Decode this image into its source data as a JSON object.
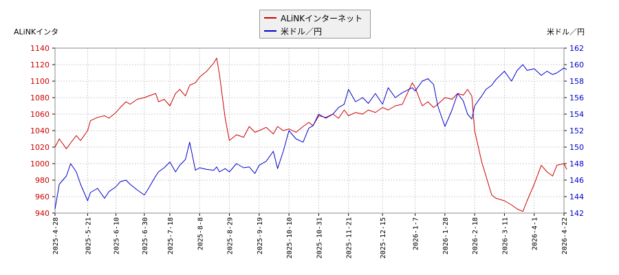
{
  "chart_data": {
    "type": "line",
    "axis_title_left": "ALiNKインタ",
    "axis_title_right": "米ドル／円",
    "legend_position": "top-center",
    "grid": true,
    "x_ticks": [
      "2025-4-28",
      "2025-5-21",
      "2025-6-10",
      "2025-6-30",
      "2025-7-18",
      "2025-8-8",
      "2025-8-29",
      "2025-9-19",
      "2025-10-10",
      "2025-10-31",
      "2025-11-21",
      "2025-12-15",
      "2026-1-7",
      "2026-1-28",
      "2026-2-18",
      "2026-3-11",
      "2026-4-1",
      "2026-4-22"
    ],
    "y_left": {
      "min": 940,
      "max": 1140,
      "ticks": [
        "940",
        "960",
        "980",
        "1000",
        "1020",
        "1040",
        "1060",
        "1080",
        "1100",
        "1120",
        "1140"
      ],
      "color": "#cc0000"
    },
    "y_right": {
      "min": 142,
      "max": 162,
      "ticks": [
        "142",
        "144",
        "146",
        "148",
        "150",
        "152",
        "154",
        "156",
        "158",
        "160",
        "162"
      ],
      "color": "#0000cc"
    },
    "series": [
      {
        "name": "ALiNKインターネット",
        "axis": "left",
        "color": "#cc0000",
        "points": [
          [
            "2025-4-28",
            1020
          ],
          [
            "2025-5-1",
            1030
          ],
          [
            "2025-5-6",
            1018
          ],
          [
            "2025-5-9",
            1025
          ],
          [
            "2025-5-13",
            1034
          ],
          [
            "2025-5-16",
            1028
          ],
          [
            "2025-5-21",
            1040
          ],
          [
            "2025-5-23",
            1052
          ],
          [
            "2025-5-28",
            1056
          ],
          [
            "2025-6-2",
            1058
          ],
          [
            "2025-6-5",
            1055
          ],
          [
            "2025-6-10",
            1062
          ],
          [
            "2025-6-13",
            1068
          ],
          [
            "2025-6-17",
            1075
          ],
          [
            "2025-6-20",
            1072
          ],
          [
            "2025-6-25",
            1078
          ],
          [
            "2025-6-30",
            1080
          ],
          [
            "2025-7-3",
            1082
          ],
          [
            "2025-7-8",
            1085
          ],
          [
            "2025-7-10",
            1075
          ],
          [
            "2025-7-14",
            1078
          ],
          [
            "2025-7-18",
            1070
          ],
          [
            "2025-7-22",
            1085
          ],
          [
            "2025-7-25",
            1090
          ],
          [
            "2025-7-29",
            1082
          ],
          [
            "2025-8-1",
            1095
          ],
          [
            "2025-8-5",
            1098
          ],
          [
            "2025-8-8",
            1105
          ],
          [
            "2025-8-13",
            1112
          ],
          [
            "2025-8-18",
            1122
          ],
          [
            "2025-8-20",
            1128
          ],
          [
            "2025-8-22",
            1108
          ],
          [
            "2025-8-26",
            1055
          ],
          [
            "2025-8-29",
            1028
          ],
          [
            "2025-9-3",
            1035
          ],
          [
            "2025-9-8",
            1032
          ],
          [
            "2025-9-12",
            1045
          ],
          [
            "2025-9-16",
            1038
          ],
          [
            "2025-9-19",
            1040
          ],
          [
            "2025-9-24",
            1044
          ],
          [
            "2025-9-29",
            1036
          ],
          [
            "2025-10-2",
            1045
          ],
          [
            "2025-10-6",
            1040
          ],
          [
            "2025-10-10",
            1042
          ],
          [
            "2025-10-15",
            1038
          ],
          [
            "2025-10-20",
            1045
          ],
          [
            "2025-10-24",
            1050
          ],
          [
            "2025-10-27",
            1046
          ],
          [
            "2025-10-31",
            1058
          ],
          [
            "2025-11-5",
            1056
          ],
          [
            "2025-11-10",
            1060
          ],
          [
            "2025-11-14",
            1055
          ],
          [
            "2025-11-18",
            1065
          ],
          [
            "2025-11-21",
            1058
          ],
          [
            "2025-11-26",
            1062
          ],
          [
            "2025-12-1",
            1060
          ],
          [
            "2025-12-5",
            1065
          ],
          [
            "2025-12-10",
            1062
          ],
          [
            "2025-12-15",
            1068
          ],
          [
            "2025-12-19",
            1065
          ],
          [
            "2025-12-24",
            1070
          ],
          [
            "2025-12-29",
            1072
          ],
          [
            "2026-1-5",
            1098
          ],
          [
            "2026-1-7",
            1092
          ],
          [
            "2026-1-12",
            1070
          ],
          [
            "2026-1-16",
            1075
          ],
          [
            "2026-1-20",
            1068
          ],
          [
            "2026-1-23",
            1072
          ],
          [
            "2026-1-28",
            1080
          ],
          [
            "2026-2-2",
            1078
          ],
          [
            "2026-2-6",
            1085
          ],
          [
            "2026-2-10",
            1083
          ],
          [
            "2026-2-13",
            1090
          ],
          [
            "2026-2-16",
            1082
          ],
          [
            "2026-2-18",
            1040
          ],
          [
            "2026-2-23",
            1002
          ],
          [
            "2026-2-26",
            985
          ],
          [
            "2026-3-2",
            962
          ],
          [
            "2026-3-5",
            958
          ],
          [
            "2026-3-11",
            955
          ],
          [
            "2026-3-16",
            950
          ],
          [
            "2026-3-20",
            945
          ],
          [
            "2026-3-24",
            942
          ],
          [
            "2026-3-27",
            955
          ],
          [
            "2026-4-1",
            975
          ],
          [
            "2026-4-6",
            998
          ],
          [
            "2026-4-10",
            990
          ],
          [
            "2026-4-14",
            985
          ],
          [
            "2026-4-17",
            998
          ],
          [
            "2026-4-22",
            1000
          ],
          [
            "2026-4-24",
            993
          ]
        ]
      },
      {
        "name": "米ドル／円",
        "axis": "right",
        "color": "#0000cc",
        "points": [
          [
            "2025-4-28",
            142.5
          ],
          [
            "2025-5-1",
            145.5
          ],
          [
            "2025-5-6",
            146.5
          ],
          [
            "2025-5-9",
            148.0
          ],
          [
            "2025-5-13",
            147.0
          ],
          [
            "2025-5-16",
            145.5
          ],
          [
            "2025-5-21",
            143.5
          ],
          [
            "2025-5-23",
            144.5
          ],
          [
            "2025-5-28",
            145.0
          ],
          [
            "2025-6-2",
            143.8
          ],
          [
            "2025-6-5",
            144.6
          ],
          [
            "2025-6-10",
            145.2
          ],
          [
            "2025-6-13",
            145.8
          ],
          [
            "2025-6-17",
            146.0
          ],
          [
            "2025-6-20",
            145.5
          ],
          [
            "2025-6-25",
            144.8
          ],
          [
            "2025-6-30",
            144.2
          ],
          [
            "2025-7-3",
            145.0
          ],
          [
            "2025-7-8",
            146.5
          ],
          [
            "2025-7-10",
            147.0
          ],
          [
            "2025-7-14",
            147.5
          ],
          [
            "2025-7-18",
            148.2
          ],
          [
            "2025-7-22",
            147.0
          ],
          [
            "2025-7-25",
            147.8
          ],
          [
            "2025-7-29",
            148.5
          ],
          [
            "2025-8-1",
            150.6
          ],
          [
            "2025-8-5",
            147.2
          ],
          [
            "2025-8-8",
            147.5
          ],
          [
            "2025-8-13",
            147.3
          ],
          [
            "2025-8-18",
            147.2
          ],
          [
            "2025-8-20",
            147.6
          ],
          [
            "2025-8-22",
            147.0
          ],
          [
            "2025-8-26",
            147.4
          ],
          [
            "2025-8-29",
            147.0
          ],
          [
            "2025-9-3",
            148.0
          ],
          [
            "2025-9-8",
            147.5
          ],
          [
            "2025-9-12",
            147.6
          ],
          [
            "2025-9-16",
            146.8
          ],
          [
            "2025-9-19",
            147.8
          ],
          [
            "2025-9-24",
            148.3
          ],
          [
            "2025-9-29",
            149.5
          ],
          [
            "2025-10-2",
            147.4
          ],
          [
            "2025-10-6",
            149.5
          ],
          [
            "2025-10-10",
            152.0
          ],
          [
            "2025-10-15",
            151.0
          ],
          [
            "2025-10-20",
            150.6
          ],
          [
            "2025-10-24",
            152.3
          ],
          [
            "2025-10-27",
            152.6
          ],
          [
            "2025-10-31",
            154.0
          ],
          [
            "2025-11-5",
            153.5
          ],
          [
            "2025-11-10",
            154.0
          ],
          [
            "2025-11-14",
            154.8
          ],
          [
            "2025-11-18",
            155.2
          ],
          [
            "2025-11-21",
            157.0
          ],
          [
            "2025-11-26",
            155.5
          ],
          [
            "2025-12-1",
            156.0
          ],
          [
            "2025-12-5",
            155.3
          ],
          [
            "2025-12-10",
            156.5
          ],
          [
            "2025-12-15",
            155.2
          ],
          [
            "2025-12-19",
            157.2
          ],
          [
            "2025-12-24",
            156.0
          ],
          [
            "2025-12-29",
            156.6
          ],
          [
            "2026-1-5",
            157.2
          ],
          [
            "2026-1-7",
            156.8
          ],
          [
            "2026-1-12",
            158.0
          ],
          [
            "2026-1-16",
            158.3
          ],
          [
            "2026-1-20",
            157.6
          ],
          [
            "2026-1-23",
            155.0
          ],
          [
            "2026-1-28",
            152.5
          ],
          [
            "2026-2-2",
            154.5
          ],
          [
            "2026-2-6",
            156.5
          ],
          [
            "2026-2-10",
            155.6
          ],
          [
            "2026-2-13",
            154.0
          ],
          [
            "2026-2-16",
            153.4
          ],
          [
            "2026-2-18",
            155.0
          ],
          [
            "2026-2-23",
            156.2
          ],
          [
            "2026-2-26",
            157.0
          ],
          [
            "2026-3-2",
            157.5
          ],
          [
            "2026-3-5",
            158.2
          ],
          [
            "2026-3-11",
            159.2
          ],
          [
            "2026-3-16",
            158.0
          ],
          [
            "2026-3-20",
            159.3
          ],
          [
            "2026-3-24",
            160.0
          ],
          [
            "2026-3-27",
            159.3
          ],
          [
            "2026-4-1",
            159.5
          ],
          [
            "2026-4-6",
            158.7
          ],
          [
            "2026-4-10",
            159.2
          ],
          [
            "2026-4-14",
            158.8
          ],
          [
            "2026-4-17",
            159.0
          ],
          [
            "2026-4-22",
            159.6
          ],
          [
            "2026-4-24",
            159.4
          ]
        ]
      }
    ]
  }
}
